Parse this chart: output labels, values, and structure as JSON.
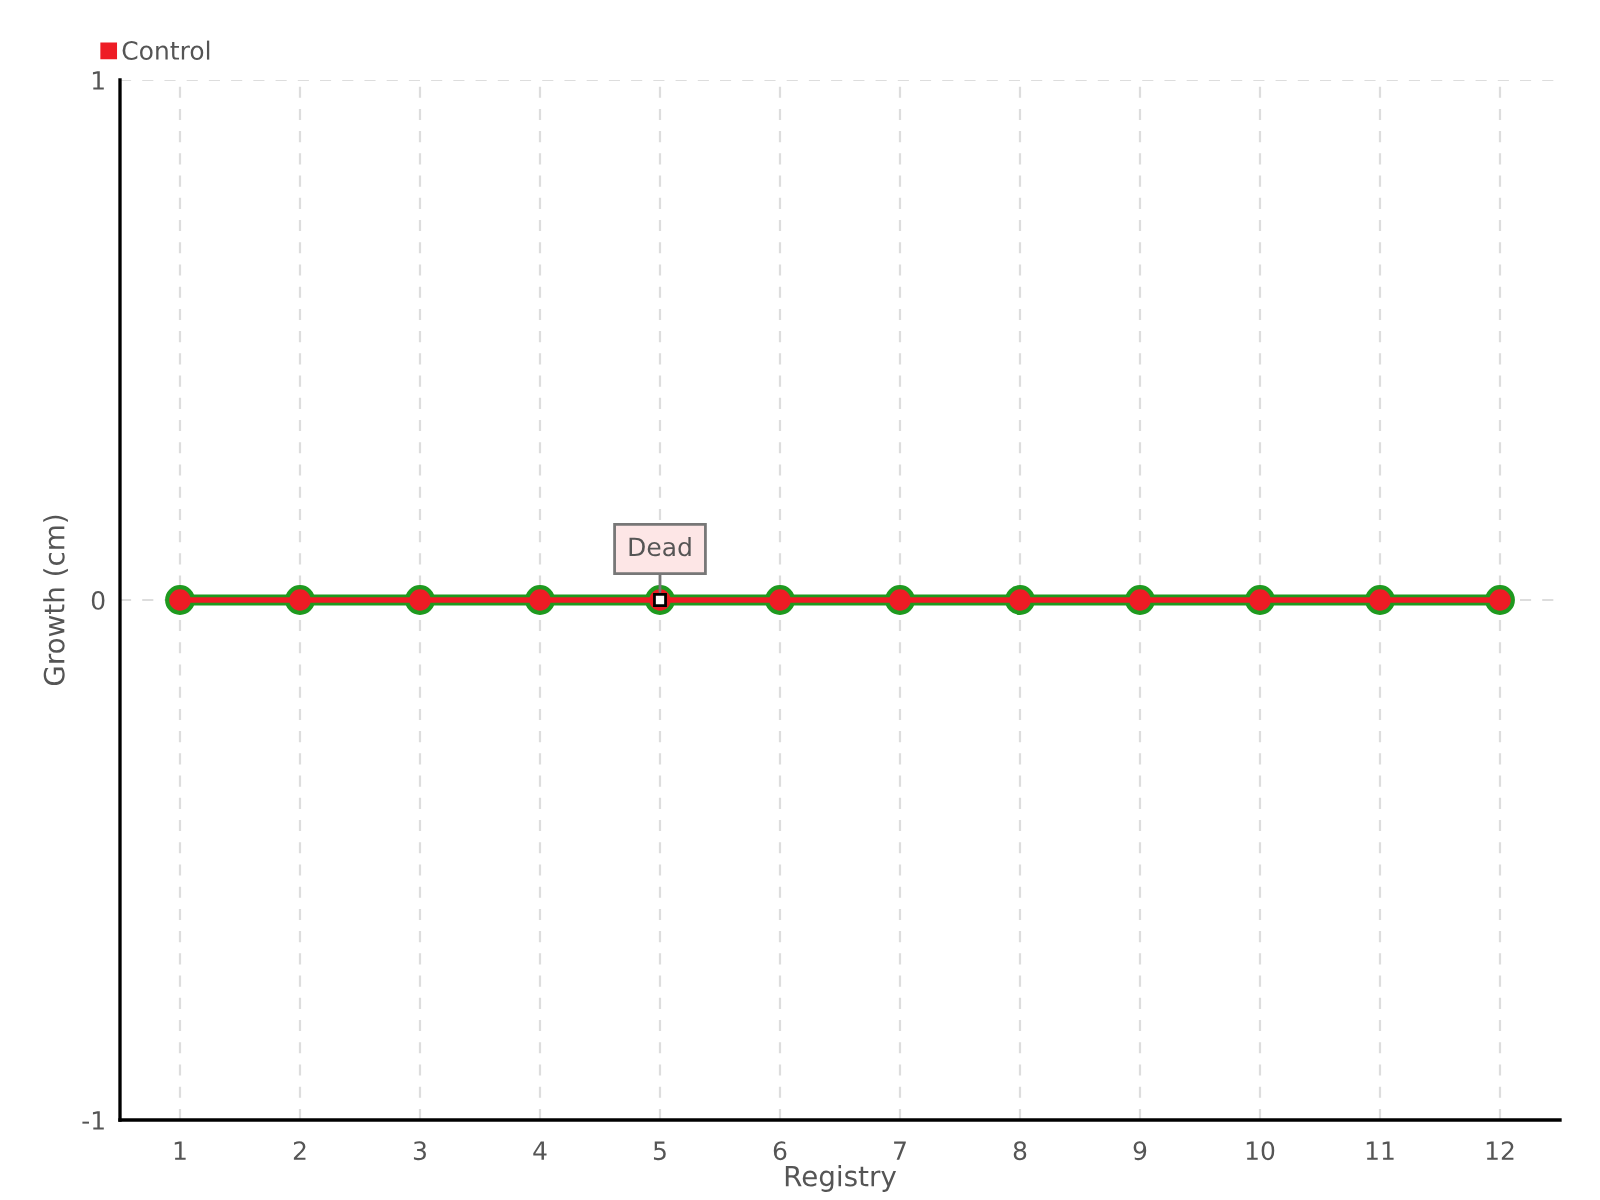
{
  "chart_data": {
    "type": "line",
    "xlabel": "Registry",
    "ylabel": "Growth (cm)",
    "categories": [
      "1",
      "2",
      "3",
      "4",
      "5",
      "6",
      "7",
      "8",
      "9",
      "10",
      "11",
      "12"
    ],
    "ylim": [
      -1,
      1
    ],
    "yticks": [
      -1,
      0,
      1
    ],
    "grid": true,
    "legend": "top left",
    "marker": "circle",
    "series": [
      {
        "color": "#1f9a1f",
        "values": [
          0,
          0,
          0,
          0,
          0,
          0,
          0,
          0,
          0,
          0,
          0,
          0
        ]
      },
      {
        "name": "Control",
        "color": "#ee1c25",
        "values": [
          0,
          0,
          0,
          0,
          0,
          0,
          0,
          0,
          0,
          0,
          0,
          0
        ]
      }
    ],
    "annotations": [
      {
        "text": "Dead",
        "x": "5",
        "y": 0
      }
    ]
  }
}
